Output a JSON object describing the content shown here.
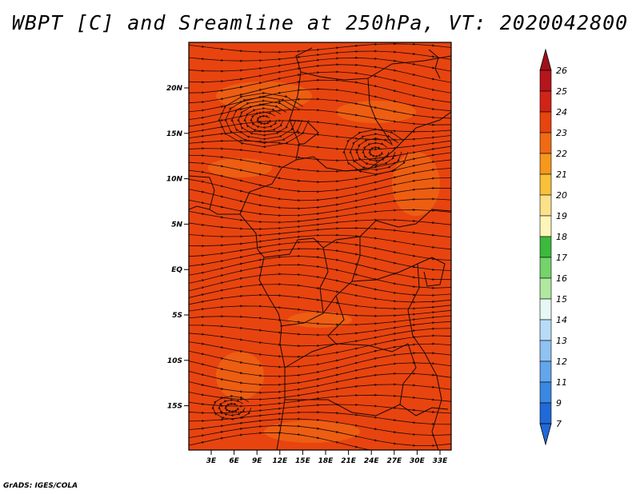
{
  "title": "WBPT [C] and Sreamline at 250hPa, VT: 2020042800",
  "footer": "GrADS: IGES/COLA",
  "map": {
    "background_color": "#e8440f",
    "patch_color": "#f06a14",
    "streamline_color": "#1a0a05",
    "lat_labels": [
      "20N",
      "15N",
      "10N",
      "5N",
      "EQ",
      "5S",
      "10S",
      "15S"
    ],
    "lon_labels": [
      "3E",
      "6E",
      "9E",
      "12E",
      "15E",
      "18E",
      "21E",
      "24E",
      "27E",
      "30E",
      "33E"
    ]
  },
  "colorbar": {
    "labels": [
      "26",
      "25",
      "24",
      "23",
      "22",
      "21",
      "20",
      "19",
      "18",
      "17",
      "16",
      "15",
      "14",
      "13",
      "12",
      "11",
      "9",
      "7"
    ],
    "colors": [
      "#b4161b",
      "#d22317",
      "#e8440f",
      "#f06a14",
      "#f6981c",
      "#f9c03a",
      "#fde18a",
      "#fdf6b8",
      "#3cba3c",
      "#74d36a",
      "#b0e8a0",
      "#e6f8f4",
      "#b8dcf8",
      "#8ec3f2",
      "#62a6ec",
      "#3a88e2",
      "#1f6ad8"
    ],
    "tip_top_color": "#a0101a",
    "tip_bottom_color": "#1f6ad8"
  }
}
